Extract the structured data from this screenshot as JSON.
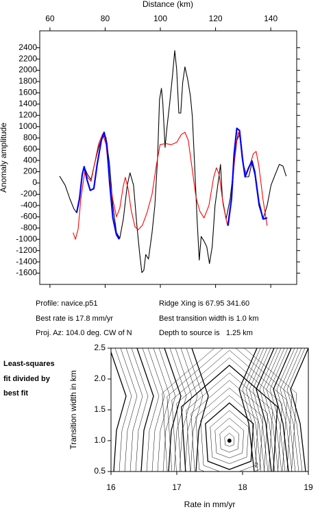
{
  "chart_data": [
    {
      "type": "line",
      "xlabel": "Distance (km)",
      "ylabel": "Anomaly amplitude",
      "xlim": [
        56.3,
        149.4
      ],
      "xticks": [
        60,
        80,
        100,
        120,
        140
      ],
      "ylim": [
        -1800,
        2700
      ],
      "yticks": [
        -1600,
        -1400,
        -1200,
        -1000,
        -800,
        -600,
        -400,
        -200,
        0,
        200,
        400,
        600,
        800,
        1000,
        1200,
        1400,
        1600,
        1800,
        2000,
        2200,
        2400
      ],
      "grid": false,
      "series": [
        {
          "color": "#000000",
          "x": [
            63.5,
            65.5,
            67.2,
            68.7,
            69.7,
            70.7,
            71.7,
            72.4,
            73.6,
            74.9,
            76.1,
            77.6,
            79.1,
            80.3,
            81.6,
            82.8,
            84.1,
            85.3,
            86.6,
            88.0,
            89.0,
            90.3,
            91.5,
            92.5,
            93.3,
            94.0,
            94.7,
            95.7,
            97.0,
            98.0,
            99.0,
            99.7,
            100.4,
            100.9,
            101.7,
            102.4,
            103.4,
            104.4,
            105.2,
            105.9,
            106.7,
            107.4,
            108.1,
            108.9,
            109.9,
            110.9,
            111.6,
            112.4,
            113.3,
            114.1,
            114.8,
            115.8,
            116.8,
            117.8,
            118.8,
            119.8,
            120.8,
            121.8,
            122.5,
            123.8,
            125.3,
            126.7,
            127.7,
            128.7,
            129.7,
            130.7,
            132.0,
            133.2,
            134.2,
            135.7,
            137.2,
            138.7,
            140.1,
            141.6,
            143.1,
            144.4,
            145.6
          ],
          "values": [
            120,
            -40,
            -280,
            -460,
            -530,
            -280,
            150,
            290,
            150,
            60,
            330,
            630,
            840,
            810,
            330,
            -400,
            -880,
            -980,
            -640,
            -40,
            180,
            -40,
            -760,
            -1250,
            -1590,
            -1550,
            -1270,
            -1350,
            -880,
            -400,
            450,
            1480,
            1680,
            1420,
            630,
            990,
            1420,
            1900,
            2350,
            2020,
            1240,
            1240,
            1780,
            2060,
            1840,
            1540,
            1180,
            330,
            -640,
            -1370,
            -950,
            -1030,
            -1130,
            -1430,
            -1130,
            -400,
            -40,
            330,
            -280,
            -640,
            -280,
            330,
            750,
            870,
            450,
            110,
            110,
            350,
            150,
            -400,
            -640,
            -400,
            -40,
            150,
            330,
            300,
            120
          ]
        },
        {
          "color": "#ff0000",
          "x": [
            68.4,
            69.2,
            70.2,
            71.2,
            72.7,
            73.6,
            74.9,
            76.1,
            77.6,
            79.1,
            80.3,
            81.6,
            82.8,
            84.1,
            85.3,
            86.6,
            87.3,
            88.3,
            89.5,
            90.8,
            92.0,
            93.5,
            95.2,
            97.0,
            98.5,
            99.9,
            101.9,
            103.9,
            105.9,
            107.6,
            108.9,
            110.1,
            111.4,
            112.9,
            114.3,
            115.8,
            117.6,
            119.3,
            120.3,
            121.3,
            122.8,
            124.3,
            125.8,
            127.2,
            128.2,
            129.2,
            130.2,
            131.2,
            132.2,
            133.7,
            134.7,
            135.7,
            137.2,
            138.7
          ],
          "values": [
            -880,
            -1000,
            -820,
            -280,
            230,
            100,
            30,
            330,
            690,
            870,
            690,
            80,
            -300,
            -600,
            -450,
            -50,
            100,
            -100,
            -500,
            -780,
            -830,
            -750,
            -520,
            -200,
            300,
            680,
            700,
            680,
            720,
            860,
            900,
            760,
            300,
            -250,
            -500,
            -620,
            -400,
            100,
            270,
            150,
            -400,
            -750,
            -250,
            600,
            900,
            750,
            300,
            150,
            280,
            520,
            560,
            300,
            -300,
            -760
          ]
        },
        {
          "color": "#0000ff",
          "x": [
            69.7,
            70.7,
            71.7,
            72.4,
            73.4,
            74.6,
            75.9,
            77.1,
            78.6,
            79.6,
            80.6,
            81.6,
            82.8,
            84.1,
            85.1,
            null,
            124.5,
            125.8,
            126.7,
            127.7,
            128.7,
            129.7,
            130.7,
            132.0,
            133.2,
            134.2,
            135.7,
            137.2,
            138.7
          ],
          "values": [
            -520,
            -280,
            150,
            290,
            60,
            -130,
            -100,
            330,
            750,
            900,
            690,
            20,
            -620,
            -920,
            -1000,
            null,
            -760,
            -280,
            510,
            970,
            930,
            450,
            110,
            270,
            390,
            200,
            -340,
            -640,
            -620
          ]
        }
      ]
    },
    {
      "type": "contour",
      "xlabel": "Rate in mm/yr",
      "ylabel": "Transition width in km",
      "xlim": [
        16,
        19
      ],
      "xticks": [
        16,
        17,
        18,
        19
      ],
      "ylim": [
        0.5,
        2.5
      ],
      "yticks": [
        0.5,
        {
          "value": 1,
          "label": "1.0"
        },
        1.5,
        {
          "value": 2,
          "label": "2.0"
        },
        2.5
      ],
      "min_point": {
        "x": 17.8,
        "y": 1.0
      },
      "contour_labels": [
        {
          "x": 18.21,
          "y": 0.6,
          "text": "2"
        }
      ]
    }
  ],
  "info": {
    "profile": "Profile: navice.p51",
    "rate": "Best rate is 17.8 mm/yr",
    "azimuth": "Proj. Az: 104.0 deg. CW of N",
    "ridge": "Ridge Xing is 67.95 341.60",
    "width": "Best transition width is 1.0 km",
    "depth": "Depth to source is   1.25 km"
  },
  "side_note": [
    "Least-squares",
    "fit divided by",
    "best fit"
  ]
}
